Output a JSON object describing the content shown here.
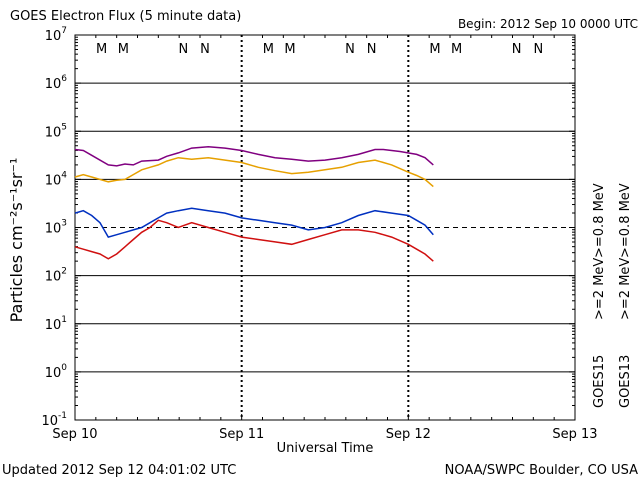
{
  "header": {
    "title": "GOES Electron Flux (5 minute data)",
    "begin": "Begin: 2012 Sep 10 0000 UTC"
  },
  "footer": {
    "updated": "Updated 2012 Sep 12 04:01:02 UTC",
    "credit": "NOAA/SWPC Boulder, CO USA"
  },
  "chart_data": {
    "type": "line",
    "title": "GOES Electron Flux (5 minute data)",
    "xlabel": "Universal Time",
    "ylabel": "Particles cm⁻²s⁻¹sr⁻¹",
    "x_unit": "days since 2012 Sep 10 0000 UTC",
    "xlim": [
      0,
      3
    ],
    "ylog": true,
    "ylim_exp": [
      -1,
      7
    ],
    "x_ticks": [
      {
        "x": 0,
        "label": "Sep 10"
      },
      {
        "x": 1,
        "label": "Sep 11"
      },
      {
        "x": 2,
        "label": "Sep 12"
      },
      {
        "x": 3,
        "label": "Sep 13"
      }
    ],
    "y_ticks": [
      {
        "exp": 7,
        "base": "10",
        "sup": "7"
      },
      {
        "exp": 6,
        "base": "10",
        "sup": "6"
      },
      {
        "exp": 5,
        "base": "10",
        "sup": "5"
      },
      {
        "exp": 4,
        "base": "10",
        "sup": "4"
      },
      {
        "exp": 3,
        "base": "10",
        "sup": "3"
      },
      {
        "exp": 2,
        "base": "10",
        "sup": "2"
      },
      {
        "exp": 1,
        "base": "10",
        "sup": "1"
      },
      {
        "exp": 0,
        "base": "10",
        "sup": "0"
      },
      {
        "exp": -1,
        "base": "10",
        "sup": "-1"
      }
    ],
    "threshold_exp": 3,
    "grid": "horizontal at each decade",
    "markers": [
      {
        "x": 0.16,
        "label": "M",
        "color": "#c00000"
      },
      {
        "x": 0.29,
        "label": "M",
        "color": "#0030c0"
      },
      {
        "x": 0.65,
        "label": "N",
        "color": "#c00000"
      },
      {
        "x": 0.78,
        "label": "N",
        "color": "#0030c0"
      },
      {
        "x": 1.16,
        "label": "M",
        "color": "#c00000"
      },
      {
        "x": 1.29,
        "label": "M",
        "color": "#0030c0"
      },
      {
        "x": 1.65,
        "label": "N",
        "color": "#c00000"
      },
      {
        "x": 1.78,
        "label": "N",
        "color": "#0030c0"
      },
      {
        "x": 2.16,
        "label": "M",
        "color": "#c00000"
      },
      {
        "x": 2.29,
        "label": "M",
        "color": "#0030c0"
      },
      {
        "x": 2.65,
        "label": "N",
        "color": "#c00000"
      },
      {
        "x": 2.78,
        "label": "N",
        "color": "#0030c0"
      }
    ],
    "series": [
      {
        "name": ">=0.8 MeV",
        "satellite": "GOES15",
        "color": "#800080",
        "points": [
          [
            0.0,
            4.62
          ],
          [
            0.05,
            4.6
          ],
          [
            0.1,
            4.5
          ],
          [
            0.2,
            4.3
          ],
          [
            0.25,
            4.28
          ],
          [
            0.3,
            4.32
          ],
          [
            0.35,
            4.3
          ],
          [
            0.4,
            4.38
          ],
          [
            0.5,
            4.4
          ],
          [
            0.55,
            4.48
          ],
          [
            0.62,
            4.55
          ],
          [
            0.7,
            4.65
          ],
          [
            0.8,
            4.68
          ],
          [
            0.9,
            4.65
          ],
          [
            1.0,
            4.6
          ],
          [
            1.1,
            4.52
          ],
          [
            1.2,
            4.45
          ],
          [
            1.3,
            4.42
          ],
          [
            1.4,
            4.38
          ],
          [
            1.5,
            4.4
          ],
          [
            1.6,
            4.45
          ],
          [
            1.7,
            4.52
          ],
          [
            1.8,
            4.62
          ],
          [
            1.85,
            4.62
          ],
          [
            1.95,
            4.58
          ],
          [
            2.05,
            4.52
          ],
          [
            2.1,
            4.45
          ],
          [
            2.15,
            4.3
          ]
        ]
      },
      {
        "name": ">=0.8 MeV",
        "satellite": "GOES13",
        "color": "#e6a000",
        "points": [
          [
            0.0,
            4.05
          ],
          [
            0.05,
            4.1
          ],
          [
            0.1,
            4.05
          ],
          [
            0.2,
            3.95
          ],
          [
            0.25,
            3.98
          ],
          [
            0.3,
            4.0
          ],
          [
            0.35,
            4.1
          ],
          [
            0.4,
            4.2
          ],
          [
            0.45,
            4.25
          ],
          [
            0.5,
            4.3
          ],
          [
            0.55,
            4.38
          ],
          [
            0.62,
            4.45
          ],
          [
            0.7,
            4.42
          ],
          [
            0.8,
            4.45
          ],
          [
            0.9,
            4.4
          ],
          [
            1.0,
            4.35
          ],
          [
            1.1,
            4.25
          ],
          [
            1.2,
            4.18
          ],
          [
            1.3,
            4.12
          ],
          [
            1.4,
            4.15
          ],
          [
            1.5,
            4.2
          ],
          [
            1.6,
            4.25
          ],
          [
            1.7,
            4.35
          ],
          [
            1.8,
            4.4
          ],
          [
            1.9,
            4.3
          ],
          [
            2.0,
            4.15
          ],
          [
            2.05,
            4.08
          ],
          [
            2.1,
            4.0
          ],
          [
            2.15,
            3.85
          ]
        ]
      },
      {
        "name": ">=2 MeV",
        "satellite": "GOES15",
        "color": "#0030c0",
        "points": [
          [
            0.0,
            3.3
          ],
          [
            0.05,
            3.35
          ],
          [
            0.1,
            3.25
          ],
          [
            0.15,
            3.1
          ],
          [
            0.2,
            2.8
          ],
          [
            0.25,
            2.85
          ],
          [
            0.3,
            2.9
          ],
          [
            0.35,
            2.95
          ],
          [
            0.4,
            3.0
          ],
          [
            0.45,
            3.1
          ],
          [
            0.5,
            3.2
          ],
          [
            0.55,
            3.3
          ],
          [
            0.62,
            3.35
          ],
          [
            0.7,
            3.4
          ],
          [
            0.8,
            3.35
          ],
          [
            0.9,
            3.3
          ],
          [
            1.0,
            3.2
          ],
          [
            1.1,
            3.15
          ],
          [
            1.2,
            3.1
          ],
          [
            1.3,
            3.05
          ],
          [
            1.4,
            2.95
          ],
          [
            1.5,
            3.0
          ],
          [
            1.6,
            3.1
          ],
          [
            1.7,
            3.25
          ],
          [
            1.8,
            3.35
          ],
          [
            1.9,
            3.3
          ],
          [
            2.0,
            3.25
          ],
          [
            2.05,
            3.15
          ],
          [
            2.1,
            3.05
          ],
          [
            2.15,
            2.85
          ]
        ]
      },
      {
        "name": ">=2 MeV",
        "satellite": "GOES13",
        "color": "#d01010",
        "points": [
          [
            0.0,
            2.6
          ],
          [
            0.05,
            2.55
          ],
          [
            0.1,
            2.5
          ],
          [
            0.15,
            2.45
          ],
          [
            0.2,
            2.35
          ],
          [
            0.25,
            2.45
          ],
          [
            0.3,
            2.6
          ],
          [
            0.35,
            2.75
          ],
          [
            0.4,
            2.9
          ],
          [
            0.45,
            3.0
          ],
          [
            0.5,
            3.15
          ],
          [
            0.55,
            3.1
          ],
          [
            0.62,
            3.0
          ],
          [
            0.7,
            3.1
          ],
          [
            0.8,
            3.0
          ],
          [
            0.9,
            2.9
          ],
          [
            1.0,
            2.8
          ],
          [
            1.1,
            2.75
          ],
          [
            1.2,
            2.7
          ],
          [
            1.3,
            2.65
          ],
          [
            1.4,
            2.75
          ],
          [
            1.5,
            2.85
          ],
          [
            1.6,
            2.95
          ],
          [
            1.7,
            2.95
          ],
          [
            1.8,
            2.9
          ],
          [
            1.9,
            2.8
          ],
          [
            2.0,
            2.65
          ],
          [
            2.05,
            2.55
          ],
          [
            2.1,
            2.45
          ],
          [
            2.15,
            2.3
          ]
        ]
      }
    ]
  },
  "legend": {
    "ge08_purple": ">=0.8 MeV",
    "ge08_orange": ">=0.8 MeV",
    "ge2_blue": ">=2 MeV",
    "ge2_red": ">=2 MeV",
    "goes15": "GOES15",
    "goes13": "GOES13",
    "colors": {
      "purple": "#800080",
      "orange": "#e6a000",
      "blue": "#0030c0",
      "red": "#d01010"
    }
  }
}
